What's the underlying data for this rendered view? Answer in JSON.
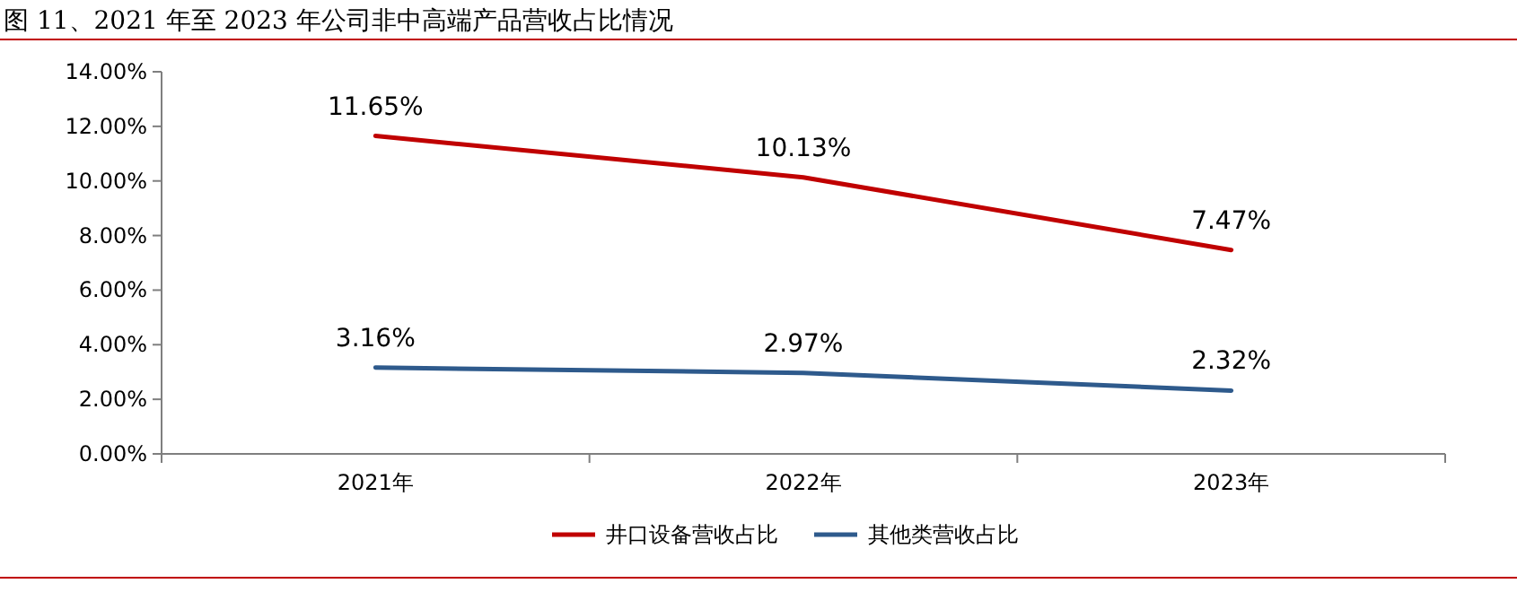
{
  "chart_data": {
    "type": "line",
    "title": "图 11、2021 年至 2023 年公司非中高端产品营收占比情况",
    "categories": [
      "2021年",
      "2022年",
      "2023年"
    ],
    "series": [
      {
        "name": "井口设备营收占比",
        "color": "#c00000",
        "values": [
          11.65,
          10.13,
          7.47
        ],
        "value_labels": [
          "11.65%",
          "10.13%",
          "7.47%"
        ]
      },
      {
        "name": "其他类营收占比",
        "color": "#2e5a8c",
        "values": [
          3.16,
          2.97,
          2.32
        ],
        "value_labels": [
          "3.16%",
          "2.97%",
          "2.32%"
        ]
      }
    ],
    "ylim": [
      0,
      14
    ],
    "yticks": [
      {
        "value": 0,
        "label": "0.00%"
      },
      {
        "value": 2,
        "label": "2.00%"
      },
      {
        "value": 4,
        "label": "4.00%"
      },
      {
        "value": 6,
        "label": "6.00%"
      },
      {
        "value": 8,
        "label": "8.00%"
      },
      {
        "value": 10,
        "label": "10.00%"
      },
      {
        "value": 12,
        "label": "12.00%"
      },
      {
        "value": 14,
        "label": "14.00%"
      }
    ],
    "grid": false,
    "legend": "bottom",
    "marker": "none",
    "line_style": "solid"
  }
}
